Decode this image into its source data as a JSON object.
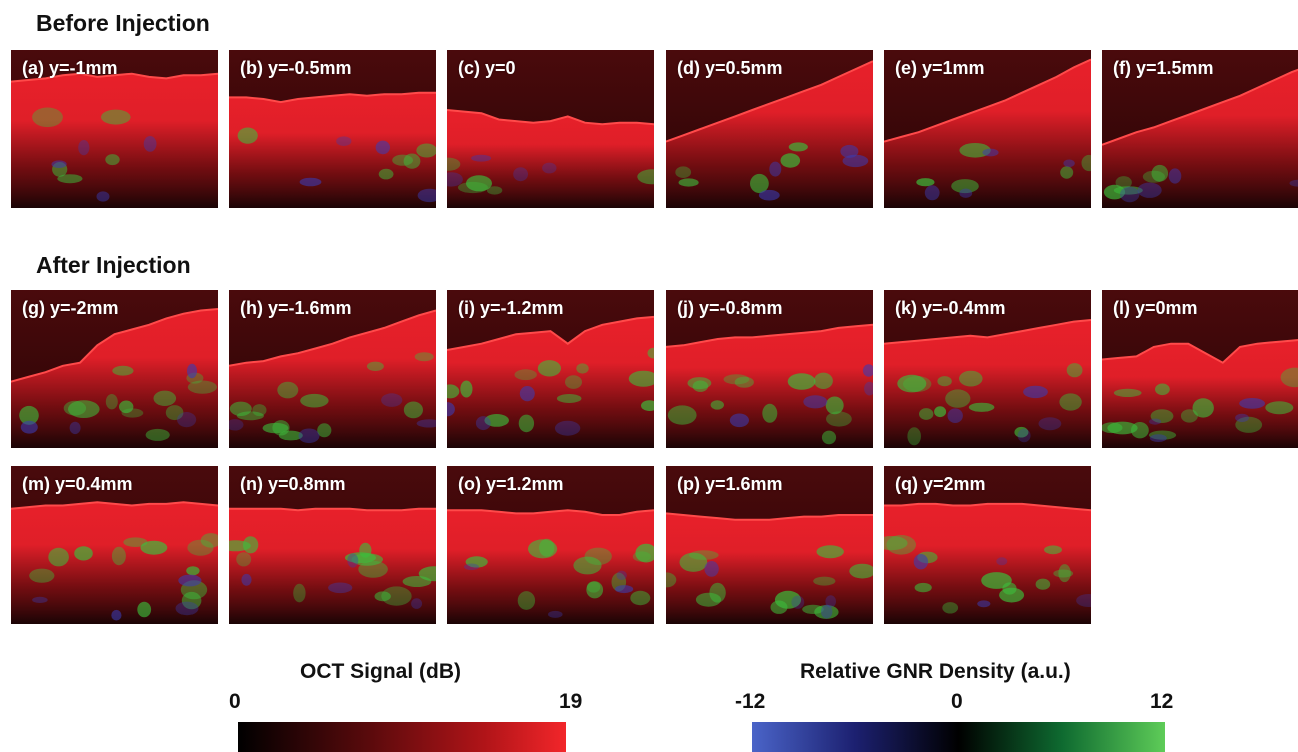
{
  "sections": {
    "before": "Before Injection",
    "after": "After Injection"
  },
  "panels": [
    {
      "label": "(a) y=-1mm",
      "surface": [
        0.2,
        0.19,
        0.18,
        0.16,
        0.15,
        0.17,
        0.16,
        0.15,
        0.17,
        0.18,
        0.16,
        0.16,
        0.15
      ]
    },
    {
      "label": "(b) y=-0.5mm",
      "surface": [
        0.3,
        0.3,
        0.31,
        0.33,
        0.31,
        0.3,
        0.29,
        0.28,
        0.29,
        0.28,
        0.28,
        0.27,
        0.27
      ]
    },
    {
      "label": "(c) y=0",
      "surface": [
        0.38,
        0.39,
        0.4,
        0.44,
        0.45,
        0.46,
        0.45,
        0.42,
        0.46,
        0.47,
        0.46,
        0.46,
        0.47
      ]
    },
    {
      "label": "(d) y=0.5mm",
      "surface": [
        0.58,
        0.54,
        0.5,
        0.46,
        0.42,
        0.38,
        0.34,
        0.3,
        0.26,
        0.22,
        0.17,
        0.12,
        0.07
      ]
    },
    {
      "label": "(e) y=1mm",
      "surface": [
        0.58,
        0.55,
        0.52,
        0.48,
        0.44,
        0.4,
        0.36,
        0.32,
        0.27,
        0.22,
        0.17,
        0.11,
        0.06
      ]
    },
    {
      "label": "(f) y=1.5mm",
      "surface": [
        0.6,
        0.56,
        0.52,
        0.49,
        0.45,
        0.41,
        0.37,
        0.33,
        0.29,
        0.24,
        0.19,
        0.14,
        0.1
      ]
    },
    {
      "label": "(g) y=-2mm",
      "surface": [
        0.58,
        0.55,
        0.52,
        0.48,
        0.46,
        0.35,
        0.28,
        0.25,
        0.22,
        0.18,
        0.15,
        0.13,
        0.12
      ]
    },
    {
      "label": "(h) y=-1.6mm",
      "surface": [
        0.48,
        0.46,
        0.45,
        0.42,
        0.4,
        0.37,
        0.34,
        0.3,
        0.27,
        0.24,
        0.2,
        0.16,
        0.13
      ]
    },
    {
      "label": "(i) y=-1.2mm",
      "surface": [
        0.38,
        0.36,
        0.34,
        0.31,
        0.28,
        0.27,
        0.26,
        0.34,
        0.26,
        0.22,
        0.2,
        0.18,
        0.17
      ]
    },
    {
      "label": "(j) y=-0.8mm",
      "surface": [
        0.36,
        0.35,
        0.33,
        0.31,
        0.3,
        0.3,
        0.29,
        0.28,
        0.27,
        0.26,
        0.24,
        0.23,
        0.22
      ]
    },
    {
      "label": "(k) y=-0.4mm",
      "surface": [
        0.34,
        0.33,
        0.32,
        0.31,
        0.3,
        0.29,
        0.3,
        0.28,
        0.26,
        0.24,
        0.22,
        0.2,
        0.19
      ]
    },
    {
      "label": "(l) y=0mm",
      "surface": [
        0.44,
        0.43,
        0.42,
        0.36,
        0.34,
        0.34,
        0.4,
        0.46,
        0.36,
        0.34,
        0.33,
        0.32,
        0.31
      ]
    },
    {
      "label": "(m) y=0.4mm",
      "surface": [
        0.27,
        0.26,
        0.25,
        0.25,
        0.24,
        0.23,
        0.24,
        0.25,
        0.24,
        0.24,
        0.23,
        0.24,
        0.25
      ]
    },
    {
      "label": "(n) y=0.8mm",
      "surface": [
        0.27,
        0.27,
        0.27,
        0.27,
        0.28,
        0.27,
        0.27,
        0.27,
        0.28,
        0.28,
        0.28,
        0.27,
        0.27
      ]
    },
    {
      "label": "(o) y=1.2mm",
      "surface": [
        0.28,
        0.28,
        0.28,
        0.29,
        0.3,
        0.3,
        0.29,
        0.28,
        0.29,
        0.31,
        0.31,
        0.29,
        0.28
      ]
    },
    {
      "label": "(p) y=1.6mm",
      "surface": [
        0.3,
        0.31,
        0.32,
        0.33,
        0.34,
        0.34,
        0.34,
        0.33,
        0.32,
        0.32,
        0.31,
        0.31,
        0.31
      ]
    },
    {
      "label": "(q) y=2mm",
      "surface": [
        0.25,
        0.25,
        0.24,
        0.24,
        0.25,
        0.25,
        0.24,
        0.24,
        0.24,
        0.25,
        0.26,
        0.27,
        0.28
      ]
    }
  ],
  "colorbars": {
    "oct": {
      "title": "OCT Signal (dB)",
      "min": "0",
      "max": "19",
      "colors": [
        "#000000",
        "#5a0a0c",
        "#b01418",
        "#f2262a"
      ]
    },
    "gnr": {
      "title": "Relative GNR Density (a.u.)",
      "min": "-12",
      "mid": "0",
      "max": "12",
      "colors": [
        "#4a64c8",
        "#1c2070",
        "#000000",
        "#0e6a30",
        "#5ecc58"
      ]
    }
  },
  "colors": {
    "tissue_red": "#e8202a",
    "gnr_green": "#3cbe3c",
    "gnr_blue": "#3a3cb4"
  }
}
